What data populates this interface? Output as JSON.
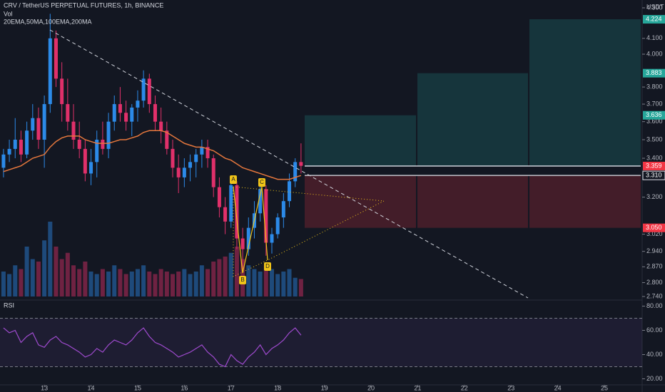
{
  "chart_data": [
    {
      "type": "candlestick",
      "title": "CRV / TetherUS PERPETUAL FUTURES, 1h, BINANCE",
      "subtitle": "Vol",
      "indicators": "20EMA,50MA,100EMA,200MA",
      "currency": "USDT",
      "log_scale": true,
      "up_color": "#2c8ae8",
      "down_color": "#e0306a",
      "ema_color": "#e5773d",
      "xlim": [
        12.05,
        25.81
      ],
      "ylim": [
        2.74,
        4.3
      ],
      "yticks": [
        {
          "value": 4.3,
          "label": "4.300"
        },
        {
          "value": 4.1,
          "label": "4.100"
        },
        {
          "value": 4.0,
          "label": "4.000"
        },
        {
          "value": 3.8,
          "label": "3.800"
        },
        {
          "value": 3.7,
          "label": "3.700"
        },
        {
          "value": 3.6,
          "label": "3.600"
        },
        {
          "value": 3.5,
          "label": "3.500"
        },
        {
          "value": 3.4,
          "label": "3.400"
        },
        {
          "value": 3.2,
          "label": "3.200"
        },
        {
          "value": 3.02,
          "label": "3.020"
        },
        {
          "value": 2.94,
          "label": "2.940"
        },
        {
          "value": 2.87,
          "label": "2.870"
        },
        {
          "value": 2.8,
          "label": "2.800"
        },
        {
          "value": 2.74,
          "label": "2.740"
        }
      ],
      "price_tags": [
        {
          "value": 4.224,
          "label": "4.224",
          "color": "#26a69a"
        },
        {
          "value": 3.883,
          "label": "3.883",
          "color": "#26a69a"
        },
        {
          "value": 3.636,
          "label": "3.636",
          "color": "#26a69a"
        },
        {
          "value": 3.359,
          "label": "3.359",
          "color": "#f23645"
        },
        {
          "value": 3.31,
          "label": "3.310",
          "color": "#131722"
        },
        {
          "value": 3.05,
          "label": "3.050",
          "color": "#f23645"
        }
      ],
      "pattern_labels": [
        "A",
        "B",
        "C",
        "D"
      ],
      "x": [
        12.125,
        12.25,
        12.375,
        12.5,
        12.625,
        12.75,
        12.875,
        13,
        13.125,
        13.25,
        13.375,
        13.5,
        13.625,
        13.75,
        13.875,
        14,
        14.125,
        14.25,
        14.375,
        14.5,
        14.625,
        14.75,
        14.875,
        15,
        15.125,
        15.25,
        15.375,
        15.5,
        15.625,
        15.75,
        15.875,
        16,
        16.125,
        16.25,
        16.375,
        16.5,
        16.625,
        16.75,
        16.875,
        17,
        17.125,
        17.25,
        17.375,
        17.5,
        17.625,
        17.75,
        17.875,
        18,
        18.125,
        18.25,
        18.375,
        18.5
      ],
      "open": [
        3.35,
        3.42,
        3.45,
        3.5,
        3.42,
        3.55,
        3.62,
        3.5,
        3.7,
        4.1,
        3.85,
        3.7,
        3.6,
        3.5,
        3.45,
        3.32,
        3.38,
        3.5,
        3.45,
        3.6,
        3.7,
        3.65,
        3.6,
        3.68,
        3.72,
        3.85,
        3.7,
        3.6,
        3.55,
        3.45,
        3.35,
        3.3,
        3.35,
        3.38,
        3.42,
        3.46,
        3.4,
        3.25,
        3.15,
        3.08,
        3.26,
        3.0,
        2.95,
        3.05,
        3.12,
        3.24,
        2.98,
        3.02,
        3.1,
        3.18,
        3.28,
        3.38
      ],
      "high": [
        3.45,
        3.5,
        3.62,
        3.55,
        3.6,
        3.7,
        3.68,
        3.75,
        4.26,
        4.15,
        3.95,
        3.85,
        3.7,
        3.6,
        3.5,
        3.45,
        3.55,
        3.6,
        3.65,
        3.75,
        3.8,
        3.72,
        3.7,
        3.78,
        3.9,
        3.88,
        3.75,
        3.68,
        3.6,
        3.5,
        3.42,
        3.4,
        3.42,
        3.45,
        3.5,
        3.5,
        3.42,
        3.3,
        3.2,
        3.3,
        3.28,
        3.05,
        3.1,
        3.18,
        3.28,
        3.26,
        3.05,
        3.12,
        3.22,
        3.32,
        3.4,
        3.48
      ],
      "low": [
        3.3,
        3.38,
        3.4,
        3.38,
        3.4,
        3.5,
        3.45,
        3.35,
        3.65,
        3.8,
        3.6,
        3.55,
        3.45,
        3.4,
        3.28,
        3.26,
        3.3,
        3.42,
        3.4,
        3.55,
        3.6,
        3.55,
        3.52,
        3.6,
        3.68,
        3.65,
        3.55,
        3.48,
        3.42,
        3.3,
        3.22,
        3.25,
        3.28,
        3.3,
        3.35,
        3.35,
        3.2,
        3.1,
        3.02,
        3.05,
        2.95,
        2.86,
        2.92,
        3.0,
        3.08,
        2.92,
        2.93,
        3.0,
        3.05,
        3.15,
        3.25,
        3.32
      ],
      "close": [
        3.42,
        3.45,
        3.5,
        3.42,
        3.55,
        3.62,
        3.5,
        3.7,
        4.1,
        3.85,
        3.7,
        3.6,
        3.5,
        3.45,
        3.32,
        3.38,
        3.5,
        3.45,
        3.6,
        3.7,
        3.65,
        3.6,
        3.68,
        3.72,
        3.85,
        3.7,
        3.6,
        3.55,
        3.45,
        3.35,
        3.3,
        3.35,
        3.38,
        3.42,
        3.46,
        3.4,
        3.25,
        3.15,
        3.08,
        3.26,
        3.0,
        2.95,
        3.05,
        3.12,
        3.24,
        2.98,
        3.02,
        3.1,
        3.18,
        3.28,
        3.38,
        3.36
      ],
      "volume": [
        20,
        18,
        25,
        22,
        40,
        30,
        28,
        45,
        60,
        40,
        30,
        35,
        25,
        22,
        28,
        20,
        18,
        22,
        20,
        25,
        22,
        18,
        20,
        22,
        25,
        20,
        18,
        22,
        20,
        18,
        20,
        22,
        18,
        20,
        25,
        22,
        28,
        30,
        32,
        35,
        40,
        30,
        25,
        22,
        20,
        25,
        22,
        18,
        20,
        22,
        15,
        14
      ],
      "ema": [
        3.33,
        3.34,
        3.35,
        3.36,
        3.38,
        3.4,
        3.41,
        3.42,
        3.46,
        3.49,
        3.51,
        3.52,
        3.52,
        3.52,
        3.5,
        3.49,
        3.48,
        3.48,
        3.48,
        3.49,
        3.5,
        3.5,
        3.51,
        3.52,
        3.54,
        3.55,
        3.55,
        3.55,
        3.54,
        3.52,
        3.5,
        3.48,
        3.47,
        3.46,
        3.46,
        3.45,
        3.44,
        3.42,
        3.4,
        3.39,
        3.37,
        3.35,
        3.34,
        3.33,
        3.32,
        3.31,
        3.3,
        3.29,
        3.29,
        3.29,
        3.3,
        3.31
      ]
    },
    {
      "type": "line",
      "title": "RSI",
      "color": "#a04bd0",
      "xlim": [
        12.05,
        25.81
      ],
      "xticks": [
        13,
        14,
        15,
        16,
        17,
        18,
        19,
        20,
        21,
        22,
        23,
        24,
        25
      ],
      "ylim": [
        15,
        85
      ],
      "yticks": [
        {
          "value": 80,
          "label": "80.00"
        },
        {
          "value": 60,
          "label": "60.00"
        },
        {
          "value": 40,
          "label": "40.00"
        },
        {
          "value": 20,
          "label": "20.00"
        }
      ],
      "bands": [
        70,
        30
      ],
      "x": [
        12.125,
        12.25,
        12.375,
        12.5,
        12.625,
        12.75,
        12.875,
        13,
        13.125,
        13.25,
        13.375,
        13.5,
        13.625,
        13.75,
        13.875,
        14,
        14.125,
        14.25,
        14.375,
        14.5,
        14.625,
        14.75,
        14.875,
        15,
        15.125,
        15.25,
        15.375,
        15.5,
        15.625,
        15.75,
        15.875,
        16,
        16.125,
        16.25,
        16.375,
        16.5,
        16.625,
        16.75,
        16.875,
        17,
        17.125,
        17.25,
        17.375,
        17.5,
        17.625,
        17.75,
        17.875,
        18,
        18.125,
        18.25,
        18.375,
        18.5
      ],
      "values": [
        62,
        58,
        60,
        50,
        55,
        58,
        48,
        46,
        52,
        55,
        50,
        48,
        45,
        42,
        38,
        40,
        45,
        42,
        48,
        52,
        50,
        48,
        52,
        58,
        62,
        55,
        50,
        48,
        45,
        42,
        38,
        40,
        42,
        45,
        48,
        42,
        38,
        32,
        30,
        40,
        35,
        32,
        38,
        42,
        48,
        40,
        45,
        48,
        52,
        58,
        62,
        56
      ]
    }
  ]
}
